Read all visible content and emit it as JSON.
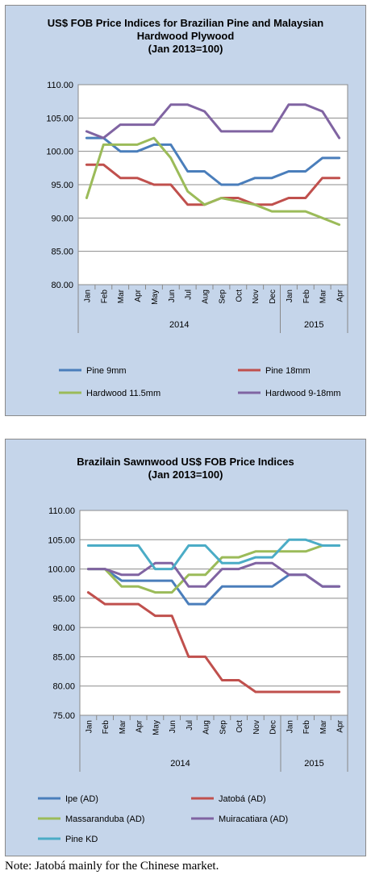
{
  "chart_data": [
    {
      "type": "line",
      "title_lines": [
        "US$ FOB Price Indices for Brazilian Pine and Malaysian",
        "Hardwood Plywood",
        "(Jan 2013=100)"
      ],
      "categories": [
        "Jan",
        "Feb",
        "Mar",
        "Apr",
        "May",
        "Jun",
        "Jul",
        "Aug",
        "Sep",
        "Oct",
        "Nov",
        "Dec",
        "Jan",
        "Feb",
        "Mar",
        "Apr"
      ],
      "year_groups": [
        {
          "label": "2014",
          "span": 12
        },
        {
          "label": "2015",
          "span": 4
        }
      ],
      "ylim": [
        80,
        110
      ],
      "yticks": [
        "80.00",
        "85.00",
        "90.00",
        "95.00",
        "100.00",
        "105.00",
        "110.00"
      ],
      "grid": true,
      "legend_position": "bottom",
      "series": [
        {
          "name": "Pine 9mm",
          "color": "#4a7ebb",
          "values": [
            102,
            102,
            100,
            100,
            101,
            101,
            97,
            97,
            95,
            95,
            96,
            96,
            97,
            97,
            99,
            99
          ]
        },
        {
          "name": "Pine 18mm",
          "color": "#c0504d",
          "values": [
            98,
            98,
            96,
            96,
            95,
            95,
            92,
            92,
            93,
            93,
            92,
            92,
            93,
            93,
            96,
            96
          ]
        },
        {
          "name": "Hardwood 11.5mm",
          "color": "#9bbb59",
          "values": [
            93,
            101,
            101,
            101,
            102,
            99,
            94,
            92,
            93,
            92.5,
            92,
            91,
            91,
            91,
            90,
            89
          ]
        },
        {
          "name": "Hardwood 9-18mm",
          "color": "#8064a2",
          "values": [
            103,
            102,
            104,
            104,
            104,
            107,
            107,
            106,
            103,
            103,
            103,
            103,
            107,
            107,
            106,
            102
          ]
        }
      ]
    },
    {
      "type": "line",
      "title_lines": [
        "Brazilain Sawnwood US$ FOB Price Indices",
        "(Jan 2013=100)"
      ],
      "categories": [
        "Jan",
        "Feb",
        "Mar",
        "Apr",
        "May",
        "Jun",
        "Jul",
        "Aug",
        "Sep",
        "Oct",
        "Nov",
        "Dec",
        "Jan",
        "Feb",
        "Mar",
        "Apr"
      ],
      "year_groups": [
        {
          "label": "2014",
          "span": 12
        },
        {
          "label": "2015",
          "span": 4
        }
      ],
      "ylim": [
        75,
        110
      ],
      "yticks": [
        "75.00",
        "80.00",
        "85.00",
        "90.00",
        "95.00",
        "100.00",
        "105.00",
        "110.00"
      ],
      "grid": true,
      "legend_position": "bottom",
      "series": [
        {
          "name": "Ipe (AD)",
          "color": "#4a7ebb",
          "values": [
            100,
            100,
            98,
            98,
            98,
            98,
            94,
            94,
            97,
            97,
            97,
            97,
            99,
            99,
            97,
            97
          ]
        },
        {
          "name": "Jatobá (AD)",
          "color": "#c0504d",
          "values": [
            96,
            94,
            94,
            94,
            92,
            92,
            85,
            85,
            81,
            81,
            79,
            79,
            79,
            79,
            79,
            79
          ]
        },
        {
          "name": "Massaranduba (AD)",
          "color": "#9bbb59",
          "values": [
            100,
            100,
            97,
            97,
            96,
            96,
            99,
            99,
            102,
            102,
            103,
            103,
            103,
            103,
            104,
            104
          ]
        },
        {
          "name": "Muiracatiara (AD)",
          "color": "#8064a2",
          "values": [
            100,
            100,
            99,
            99,
            101,
            101,
            97,
            97,
            100,
            100,
            101,
            101,
            99,
            99,
            97,
            97
          ]
        },
        {
          "name": "Pine KD",
          "color": "#4bacc6",
          "values": [
            104,
            104,
            104,
            104,
            100,
            100,
            104,
            104,
            101,
            101,
            102,
            102,
            105,
            105,
            104,
            104
          ]
        }
      ]
    }
  ],
  "note": "Note: Jatobá mainly for the Chinese market."
}
